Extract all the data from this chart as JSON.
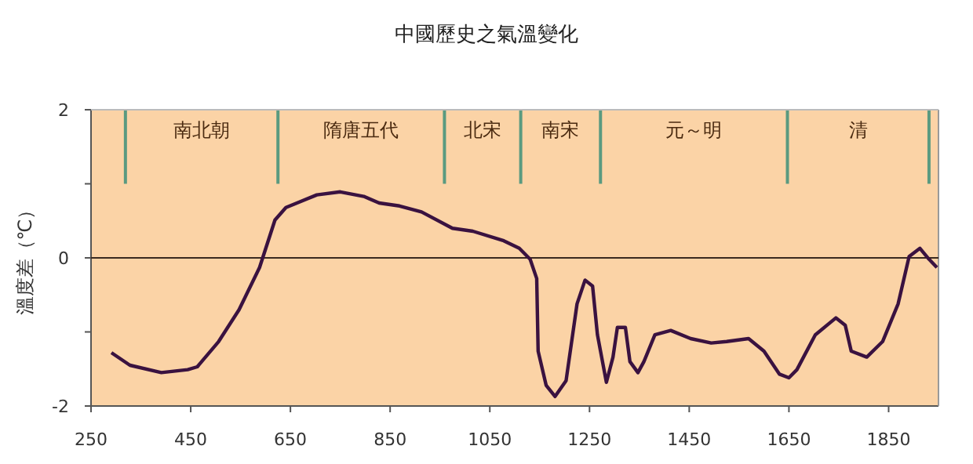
{
  "chart_data": {
    "type": "line",
    "title": "中國歷史之氣溫變化",
    "ylabel": "溫度差（℃）",
    "x": [
      291,
      328,
      391,
      444,
      463,
      506,
      547,
      588,
      619,
      641,
      703,
      750,
      797,
      828,
      869,
      913,
      975,
      1016,
      1078,
      1109,
      1131,
      1144,
      1147,
      1163,
      1181,
      1203,
      1225,
      1241,
      1256,
      1266,
      1284,
      1297,
      1306,
      1322,
      1331,
      1347,
      1359,
      1381,
      1413,
      1453,
      1494,
      1525,
      1569,
      1600,
      1631,
      1650,
      1666,
      1703,
      1744,
      1763,
      1775,
      1806,
      1838,
      1869,
      1891,
      1913,
      1931,
      1947
    ],
    "values": [
      -1.28,
      -1.45,
      -1.55,
      -1.51,
      -1.47,
      -1.13,
      -0.7,
      -0.13,
      0.51,
      0.68,
      0.85,
      0.89,
      0.83,
      0.74,
      0.7,
      0.62,
      0.4,
      0.36,
      0.23,
      0.13,
      -0.02,
      -0.28,
      -1.26,
      -1.72,
      -1.87,
      -1.66,
      -0.62,
      -0.3,
      -0.38,
      -1.04,
      -1.68,
      -1.34,
      -0.94,
      -0.94,
      -1.4,
      -1.55,
      -1.4,
      -1.04,
      -0.98,
      -1.09,
      -1.15,
      -1.13,
      -1.09,
      -1.26,
      -1.57,
      -1.62,
      -1.51,
      -1.04,
      -0.81,
      -0.91,
      -1.26,
      -1.34,
      -1.13,
      -0.62,
      0.02,
      0.13,
      -0.02,
      -0.13
    ],
    "color": "#3a1240",
    "xlim": [
      250,
      1950
    ],
    "ylim": [
      -2,
      2
    ],
    "xticks": [
      250,
      450,
      650,
      850,
      1050,
      1250,
      1450,
      1650,
      1850
    ],
    "yticks": [
      -2,
      {
        "value": -1,
        "label": null
      },
      0,
      {
        "value": 1,
        "label": null
      },
      2
    ],
    "ref_lines": [
      {
        "axis": "y",
        "value": 0,
        "color": "#3a2a20"
      },
      {
        "axis": "x",
        "value": 319,
        "color": "#5a9a80"
      },
      {
        "axis": "x",
        "value": 625,
        "color": "#5a9a80"
      },
      {
        "axis": "x",
        "value": 959,
        "color": "#5a9a80"
      },
      {
        "axis": "x",
        "value": 1112,
        "color": "#5a9a80"
      },
      {
        "axis": "x",
        "value": 1272,
        "color": "#5a9a80"
      },
      {
        "axis": "x",
        "value": 1647,
        "color": "#5a9a80"
      },
      {
        "axis": "x",
        "value": 1931,
        "color": "#5a9a80"
      }
    ],
    "annotations": [
      "南北朝",
      "隋唐五代",
      "北宋",
      "南宋",
      "元～明",
      "清"
    ],
    "grid": false
  }
}
